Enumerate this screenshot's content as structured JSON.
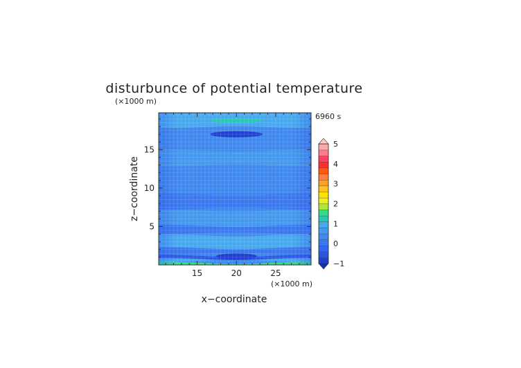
{
  "chart_data": {
    "type": "heatmap",
    "title": "disturbunce of potential temperature",
    "time_label": "6960 s",
    "xlabel": "x−coordinate",
    "ylabel": "z−coordinate",
    "x_unit": "(×1000 m)",
    "z_unit": "(×1000 m)",
    "xlim": [
      10.1,
      29.5
    ],
    "ylim": [
      0,
      19.8
    ],
    "x_ticks": [
      15,
      20,
      25
    ],
    "y_ticks": [
      5,
      10,
      15
    ],
    "colorbar": {
      "min": -1,
      "max": 5,
      "tick_labels": [
        "5",
        "4",
        "3",
        "2",
        "1",
        "0",
        "−1"
      ],
      "tick_values": [
        5,
        4,
        3,
        2,
        1,
        0,
        -1
      ],
      "extend": "both",
      "colors": [
        "#1f3fd0",
        "#2a55e0",
        "#3366ee",
        "#3a78ef",
        "#3f88ee",
        "#4498ee",
        "#48a8ef",
        "#2bc7b4",
        "#33dd88",
        "#a8e838",
        "#ecf020",
        "#ffe000",
        "#ffc020",
        "#ffa020",
        "#ff8040",
        "#ff5a10",
        "#ff2d2d",
        "#ff4060",
        "#ff7a8a",
        "#ffaaaa"
      ]
    },
    "field": {
      "base_color": "#3f88ee",
      "bands": [
        {
          "z": [
            0.0,
            0.4
          ],
          "color": "#33dd88",
          "label": "bottom green layer"
        },
        {
          "z": [
            0.4,
            0.9
          ],
          "color": "#48a8ef"
        },
        {
          "z": [
            0.9,
            1.3
          ],
          "color": "#2a55e0"
        },
        {
          "z": [
            1.3,
            2.3
          ],
          "color": "#3a78ef"
        },
        {
          "z": [
            2.3,
            4.0
          ],
          "color": "#48a8ef"
        },
        {
          "z": [
            4.0,
            5.2
          ],
          "color": "#3a78ef"
        },
        {
          "z": [
            5.2,
            7.2
          ],
          "color": "#4498ee"
        },
        {
          "z": [
            7.2,
            9.3
          ],
          "color": "#3a78ef"
        },
        {
          "z": [
            9.3,
            12.8
          ],
          "color": "#3f88ee"
        },
        {
          "z": [
            12.8,
            15.0
          ],
          "color": "#4498ee"
        },
        {
          "z": [
            15.0,
            17.8
          ],
          "color": "#3f88ee"
        },
        {
          "z": [
            17.8,
            19.8
          ],
          "color": "#48a8ef"
        }
      ],
      "features": [
        {
          "kind": "minimum",
          "x": 20.0,
          "z": 17.0,
          "value": -1.0,
          "color": "#1f3fd0"
        },
        {
          "kind": "maximum",
          "x": 20.0,
          "z": 18.8,
          "value": 1.0,
          "color": "#2bc7b4"
        },
        {
          "kind": "minimum",
          "x": 20.0,
          "z": 1.1,
          "value": -1.0,
          "color": "#1f3fd0"
        }
      ]
    }
  }
}
